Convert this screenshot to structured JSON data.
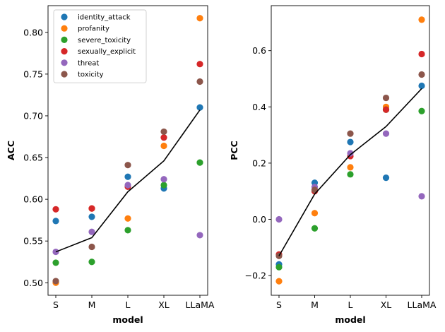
{
  "chart_data": [
    {
      "type": "scatter",
      "xlabel": "model",
      "ylabel": "ACC",
      "categories": [
        "S",
        "M",
        "L",
        "XL",
        "LLaMA"
      ],
      "ylim": [
        0.485,
        0.832
      ],
      "yticks": [
        "0.50",
        "0.55",
        "0.60",
        "0.65",
        "0.70",
        "0.75",
        "0.80"
      ],
      "legend": "top-left",
      "series": [
        {
          "name": "identity_attack",
          "color": "#1f77b4",
          "values": [
            0.574,
            0.579,
            0.627,
            0.613,
            0.71
          ]
        },
        {
          "name": "profanity",
          "color": "#ff7f0e",
          "values": [
            0.5,
            0.589,
            0.577,
            0.664,
            0.817
          ]
        },
        {
          "name": "severe_toxicity",
          "color": "#2ca02c",
          "values": [
            0.524,
            0.525,
            0.563,
            0.617,
            0.644
          ]
        },
        {
          "name": "sexually_explicit",
          "color": "#d62728",
          "values": [
            0.588,
            0.589,
            0.615,
            0.674,
            0.762
          ]
        },
        {
          "name": "threat",
          "color": "#9467bd",
          "values": [
            0.537,
            0.561,
            0.617,
            0.624,
            0.557
          ]
        },
        {
          "name": "toxicity",
          "color": "#8c564b",
          "values": [
            0.502,
            0.543,
            0.641,
            0.681,
            0.741
          ]
        }
      ],
      "mean_line": {
        "color": "#000000",
        "values": [
          0.537,
          0.554,
          0.609,
          0.646,
          0.707
        ]
      }
    },
    {
      "type": "scatter",
      "xlabel": "model",
      "ylabel": "PCC",
      "categories": [
        "S",
        "M",
        "L",
        "XL",
        "LLaMA"
      ],
      "ylim": [
        -0.27,
        0.76
      ],
      "yticks": [
        "−0.2",
        "0.0",
        "0.2",
        "0.4",
        "0.6"
      ],
      "series": [
        {
          "name": "identity_attack",
          "color": "#1f77b4",
          "values": [
            -0.16,
            0.13,
            0.275,
            0.148,
            0.475
          ]
        },
        {
          "name": "profanity",
          "color": "#ff7f0e",
          "values": [
            -0.22,
            0.022,
            0.185,
            0.4,
            0.71
          ]
        },
        {
          "name": "severe_toxicity",
          "color": "#2ca02c",
          "values": [
            -0.17,
            -0.032,
            0.16,
            0.39,
            0.385
          ]
        },
        {
          "name": "sexually_explicit",
          "color": "#d62728",
          "values": [
            -0.125,
            0.1,
            0.225,
            0.39,
            0.588
          ]
        },
        {
          "name": "threat",
          "color": "#9467bd",
          "values": [
            0.0,
            0.115,
            0.235,
            0.305,
            0.082
          ]
        },
        {
          "name": "toxicity",
          "color": "#8c564b",
          "values": [
            -0.13,
            0.105,
            0.305,
            0.432,
            0.515
          ]
        }
      ],
      "mean_line": {
        "color": "#000000",
        "values": [
          -0.13,
          0.09,
          0.23,
          0.33,
          0.465
        ]
      }
    }
  ]
}
